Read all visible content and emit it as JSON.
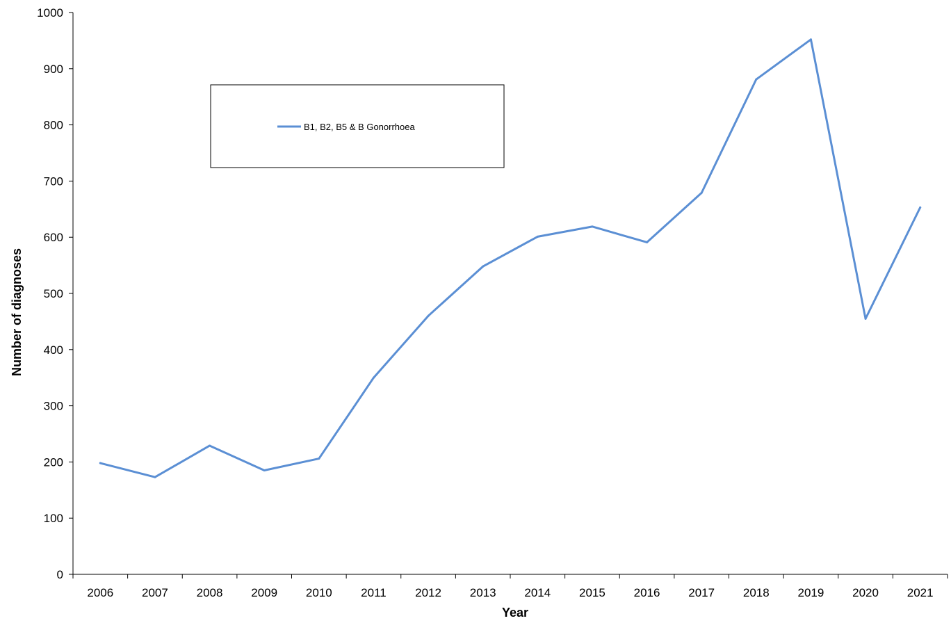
{
  "chart_data": {
    "type": "line",
    "xlabel": "Year",
    "ylabel": "Number of diagnoses",
    "categories": [
      "2006",
      "2007",
      "2008",
      "2009",
      "2010",
      "2011",
      "2012",
      "2013",
      "2014",
      "2015",
      "2016",
      "2017",
      "2018",
      "2019",
      "2020",
      "2021"
    ],
    "series": [
      {
        "name": "B1, B2, B5 & B Gonorrhoea",
        "color": "#5B8FD4",
        "values": [
          198,
          173,
          229,
          185,
          206,
          350,
          460,
          548,
          601,
          619,
          591,
          679,
          881,
          952,
          455,
          653
        ]
      }
    ],
    "ylim": [
      0,
      1000
    ],
    "yticks": [
      "0",
      "100",
      "200",
      "300",
      "400",
      "500",
      "600",
      "700",
      "800",
      "900",
      "1000"
    ],
    "grid": false,
    "legend": "top-left"
  }
}
